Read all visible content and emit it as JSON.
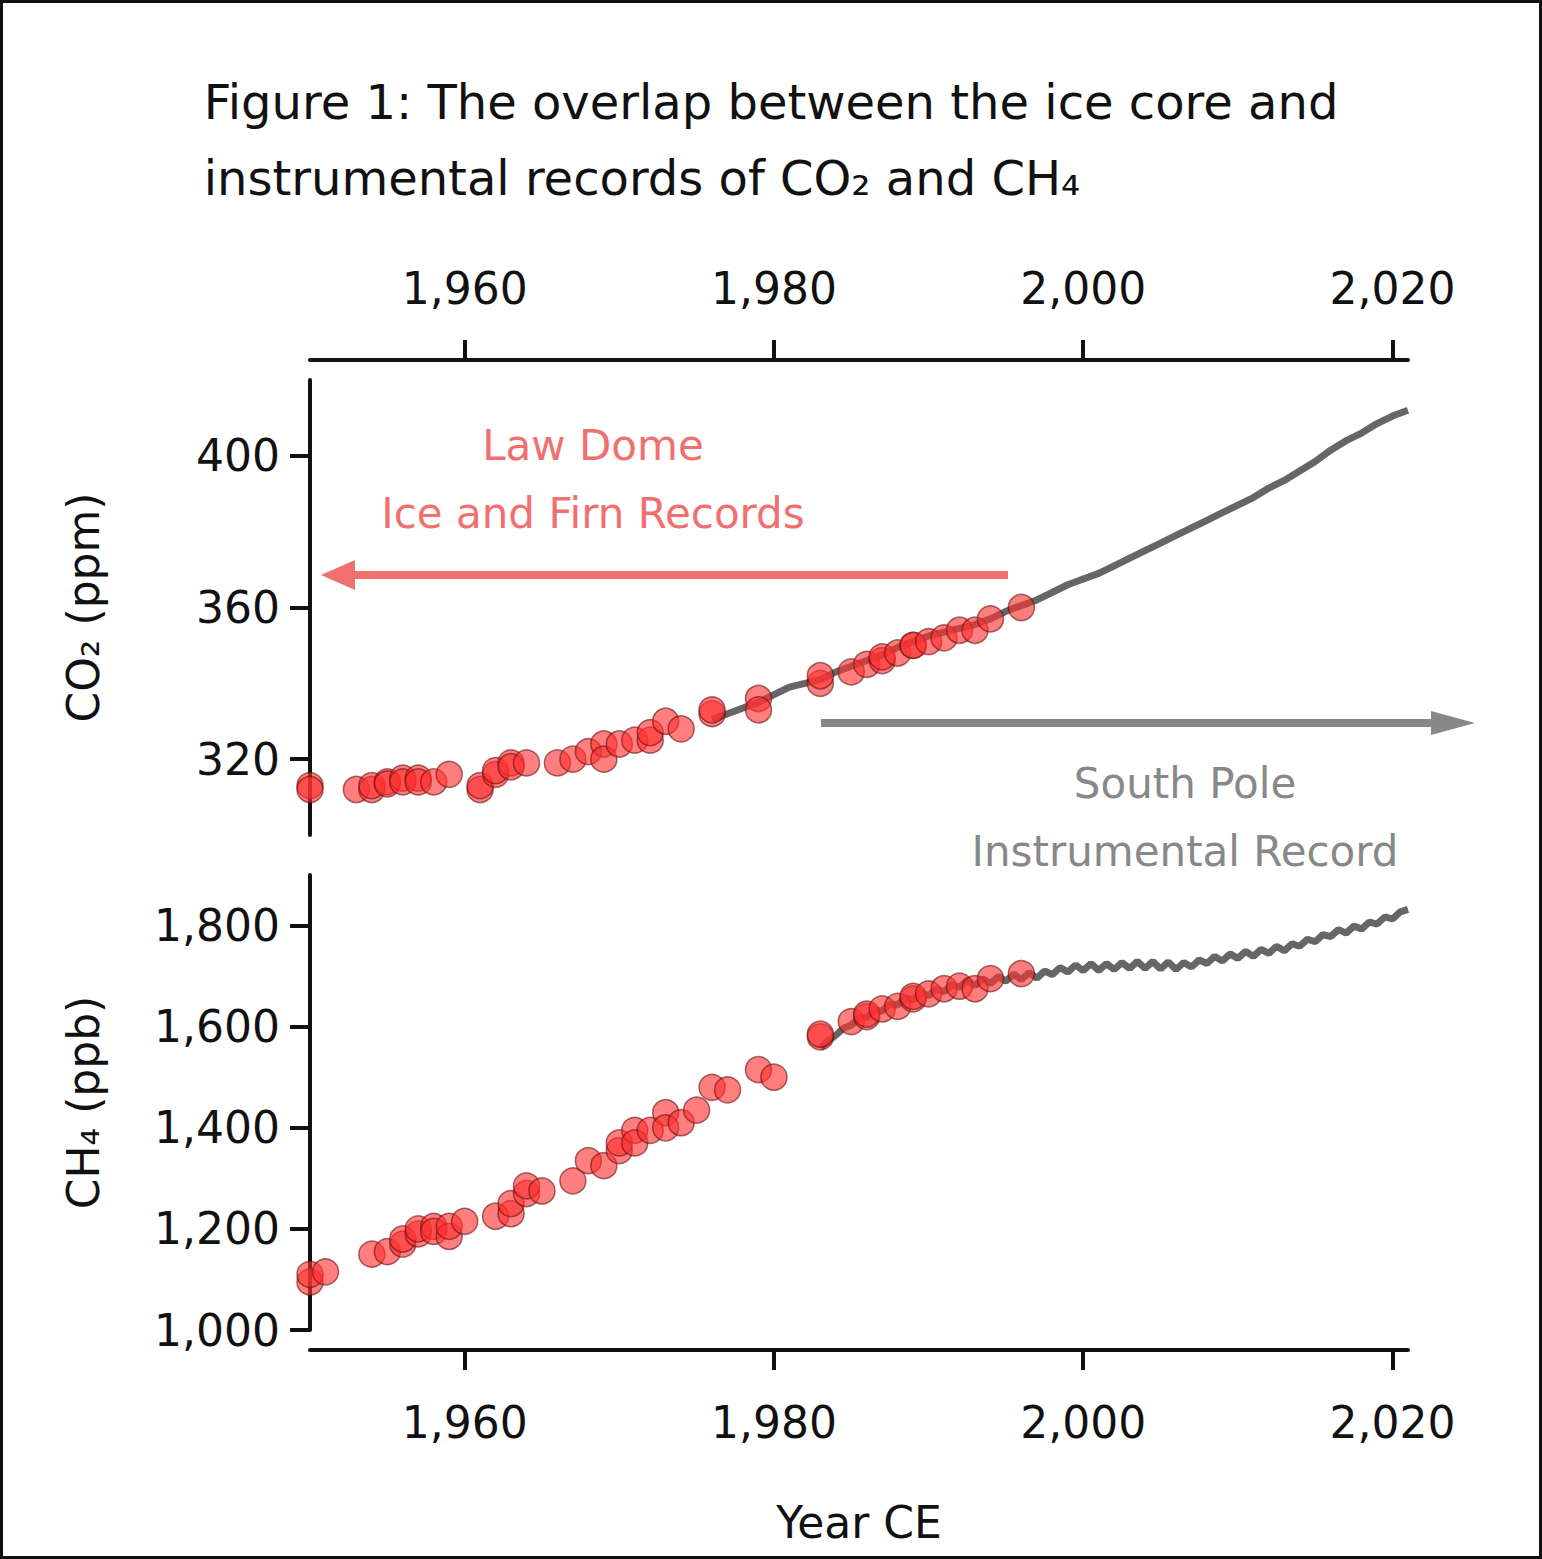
{
  "chart_data": {
    "type": "scatter",
    "title": "Figure 1: The overlap between the ice core and\ninstrumental records of CO₂ and CH₄",
    "x_label": "Year CE",
    "xlim": [
      1950,
      2021
    ],
    "xticks": [
      1960,
      1980,
      2000,
      2020
    ],
    "annotations": [
      {
        "text": "Law Dome\nIce and Firn Records",
        "color": "#f07070"
      },
      {
        "text": "South Pole\nInstrumental Record",
        "color": "#888888"
      }
    ],
    "panels": [
      {
        "y_label": "CO₂ (ppm)",
        "ylim": [
          300,
          420
        ],
        "yticks": [
          320,
          360,
          400
        ],
        "series": [
          {
            "type": "scatter",
            "color": "#ff3030",
            "marker": "circle",
            "x": [
              1950,
              1950,
              1953,
              1954,
              1954,
              1955,
              1955,
              1956,
              1956,
              1957,
              1957,
              1958,
              1959,
              1961,
              1961,
              1962,
              1962,
              1963,
              1963,
              1964,
              1966,
              1967,
              1968,
              1969,
              1969,
              1970,
              1971,
              1972,
              1972,
              1973,
              1974,
              1976,
              1976,
              1979,
              1979,
              1983,
              1983,
              1985,
              1986,
              1987,
              1987,
              1988,
              1989,
              1989,
              1990,
              1991,
              1992,
              1993,
              1994,
              1996
            ],
            "values": [
              313,
              312,
              312,
              312,
              313,
              314,
              313.5,
              315,
              314,
              315,
              314,
              314,
              316,
              312,
              313,
              316,
              317,
              319,
              318,
              319,
              319,
              320,
              322,
              324,
              320,
              324,
              325,
              325,
              327,
              330,
              328,
              332,
              333,
              336,
              333,
              340,
              342,
              343,
              345,
              346,
              347,
              348,
              350,
              350,
              351,
              352,
              354,
              354,
              357,
              360
            ]
          },
          {
            "type": "line",
            "color": "#666666",
            "x": [
              1976,
              1977,
              1978,
              1979,
              1980,
              1981,
              1982,
              1983,
              1984,
              1985,
              1986,
              1987,
              1988,
              1989,
              1990,
              1991,
              1992,
              1993,
              1994,
              1995,
              1996,
              1997,
              1998,
              1999,
              2000,
              2001,
              2002,
              2003,
              2004,
              2005,
              2006,
              2007,
              2008,
              2009,
              2010,
              2011,
              2012,
              2013,
              2014,
              2015,
              2016,
              2017,
              2018,
              2019,
              2020,
              2021
            ],
            "values": [
              330.5,
              332,
              333.5,
              335,
              337,
              339,
              340,
              341,
              343,
              344.5,
              346,
              347.5,
              349.5,
              351,
              352.5,
              353.5,
              354.5,
              355.5,
              357,
              359,
              360.5,
              362,
              364,
              366,
              367.5,
              369,
              371,
              373,
              375,
              377,
              379,
              381,
              383,
              385,
              387,
              389,
              391.5,
              393.5,
              396,
              398.5,
              401.5,
              404,
              406,
              408.5,
              410.5,
              412
            ]
          }
        ]
      },
      {
        "y_label": "CH₄ (ppb)",
        "ylim": [
          1000,
          1900
        ],
        "yticks": [
          1000,
          1200,
          1400,
          1600,
          1800
        ],
        "series": [
          {
            "type": "scatter",
            "color": "#ff3030",
            "marker": "circle",
            "x": [
              1950,
              1950,
              1951,
              1954,
              1955,
              1956,
              1956,
              1957,
              1957,
              1958,
              1958,
              1959,
              1959,
              1960,
              1962,
              1963,
              1963,
              1964,
              1964,
              1965,
              1967,
              1968,
              1969,
              1970,
              1970,
              1971,
              1971,
              1972,
              1973,
              1973,
              1974,
              1975,
              1976,
              1977,
              1979,
              1980,
              1983,
              1983,
              1985,
              1986,
              1986,
              1987,
              1988,
              1989,
              1989,
              1990,
              1991,
              1992,
              1993,
              1994,
              1996
            ],
            "values": [
              1095,
              1110,
              1115,
              1150,
              1155,
              1170,
              1180,
              1190,
              1200,
              1205,
              1195,
              1185,
              1205,
              1215,
              1225,
              1230,
              1250,
              1270,
              1285,
              1275,
              1295,
              1335,
              1325,
              1355,
              1370,
              1395,
              1370,
              1395,
              1430,
              1400,
              1410,
              1435,
              1480,
              1475,
              1515,
              1500,
              1580,
              1585,
              1610,
              1620,
              1625,
              1635,
              1640,
              1655,
              1660,
              1665,
              1675,
              1680,
              1675,
              1695,
              1705
            ]
          },
          {
            "type": "line",
            "color": "#666666",
            "x": [
              1983,
              1983.5,
              1984,
              1984.5,
              1985,
              1985.5,
              1986,
              1986.5,
              1987,
              1987.5,
              1988,
              1988.5,
              1989,
              1989.5,
              1990,
              1990.5,
              1991,
              1991.5,
              1992,
              1992.5,
              1993,
              1993.5,
              1994,
              1994.5,
              1995,
              1995.5,
              1996,
              1996.5,
              1997,
              1997.5,
              1998,
              1998.5,
              1999,
              1999.5,
              2000,
              2000.5,
              2001,
              2001.5,
              2002,
              2002.5,
              2003,
              2003.5,
              2004,
              2004.5,
              2005,
              2005.5,
              2006,
              2006.5,
              2007,
              2007.5,
              2008,
              2008.5,
              2009,
              2009.5,
              2010,
              2010.5,
              2011,
              2011.5,
              2012,
              2012.5,
              2013,
              2013.5,
              2014,
              2014.5,
              2015,
              2015.5,
              2016,
              2016.5,
              2017,
              2017.5,
              2018,
              2018.5,
              2019,
              2019.5,
              2020,
              2020.5,
              2021
            ],
            "values": [
              1558,
              1572,
              1583,
              1597,
              1603,
              1617,
              1618,
              1632,
              1631,
              1645,
              1643,
              1657,
              1653,
              1667,
              1661,
              1675,
              1669,
              1683,
              1678,
              1692,
              1681,
              1695,
              1685,
              1699,
              1690,
              1704,
              1693,
              1707,
              1696,
              1710,
              1703,
              1717,
              1708,
              1722,
              1711,
              1725,
              1711,
              1725,
              1713,
              1727,
              1715,
              1729,
              1715,
              1729,
              1714,
              1728,
              1713,
              1727,
              1718,
              1732,
              1725,
              1739,
              1730,
              1744,
              1735,
              1749,
              1739,
              1753,
              1745,
              1759,
              1750,
              1764,
              1759,
              1773,
              1768,
              1782,
              1778,
              1792,
              1785,
              1799,
              1793,
              1807,
              1803,
              1817,
              1813,
              1827,
              1832
            ]
          }
        ]
      }
    ]
  }
}
